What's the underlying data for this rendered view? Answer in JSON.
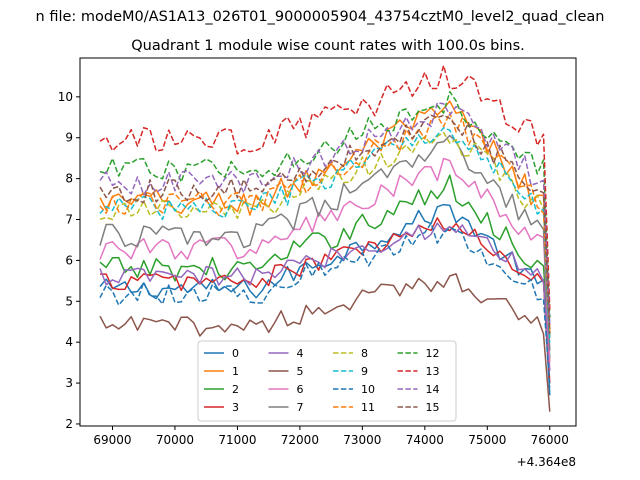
{
  "chart_data": {
    "type": "line",
    "suptitle": "n file: modeM0/AS1A13_026T01_9000005904_43754cztM0_level2_quad_clean",
    "title": "Quadrant 1 module wise count rates with 100.0s bins.",
    "xlabel": "",
    "ylabel": "",
    "x_offset_label": "+4.364e8",
    "xlim": [
      68480,
      76420
    ],
    "ylim": [
      1.95,
      10.95
    ],
    "x_ticks": [
      69000,
      70000,
      71000,
      72000,
      73000,
      74000,
      75000,
      76000
    ],
    "x_tick_labels": [
      "69000",
      "70000",
      "71000",
      "72000",
      "73000",
      "74000",
      "75000",
      "76000"
    ],
    "y_ticks": [
      2,
      3,
      4,
      5,
      6,
      7,
      8,
      9,
      10
    ],
    "y_tick_labels": [
      "2",
      "3",
      "4",
      "5",
      "6",
      "7",
      "8",
      "9",
      "10"
    ],
    "grid": false,
    "legend": {
      "position": "lower-center",
      "columns": 4
    },
    "x_start": 68800,
    "x_step": 100,
    "series": [
      {
        "name": "0",
        "color": "#1f77b4",
        "dash": "solid",
        "base": 5.3,
        "peak": 7.3,
        "amp": 0.25,
        "end": 2.7
      },
      {
        "name": "1",
        "color": "#ff7f0e",
        "dash": "solid",
        "base": 7.4,
        "peak": 9.7,
        "amp": 0.35,
        "end": 4.2
      },
      {
        "name": "2",
        "color": "#2ca02c",
        "dash": "solid",
        "base": 5.8,
        "peak": 7.8,
        "amp": 0.3,
        "end": 3.6
      },
      {
        "name": "3",
        "color": "#d62728",
        "dash": "solid",
        "base": 5.5,
        "peak": 6.9,
        "amp": 0.25,
        "end": 3.0
      },
      {
        "name": "4",
        "color": "#9467bd",
        "dash": "solid",
        "base": 5.6,
        "peak": 6.9,
        "amp": 0.25,
        "end": 3.3
      },
      {
        "name": "5",
        "color": "#8c564b",
        "dash": "solid",
        "base": 4.4,
        "peak": 5.6,
        "amp": 0.25,
        "end": 2.3
      },
      {
        "name": "6",
        "color": "#e377c2",
        "dash": "solid",
        "base": 6.3,
        "peak": 8.3,
        "amp": 0.3,
        "end": 3.5
      },
      {
        "name": "7",
        "color": "#7f7f7f",
        "dash": "solid",
        "base": 6.6,
        "peak": 8.8,
        "amp": 0.3,
        "end": 3.8
      },
      {
        "name": "8",
        "color": "#bcbd22",
        "dash": "dashed",
        "base": 7.2,
        "peak": 9.1,
        "amp": 0.3,
        "end": 4.1
      },
      {
        "name": "9",
        "color": "#17becf",
        "dash": "dashed",
        "base": 7.3,
        "peak": 9.3,
        "amp": 0.3,
        "end": 4.0
      },
      {
        "name": "10",
        "color": "#1f77b4",
        "dash": "dashed",
        "base": 5.2,
        "peak": 6.8,
        "amp": 0.3,
        "end": 2.9
      },
      {
        "name": "11",
        "color": "#ff7f0e",
        "dash": "dashed",
        "base": 7.4,
        "peak": 9.5,
        "amp": 0.3,
        "end": 4.3
      },
      {
        "name": "12",
        "color": "#2ca02c",
        "dash": "dashed",
        "base": 8.2,
        "peak": 9.9,
        "amp": 0.3,
        "end": 4.6
      },
      {
        "name": "13",
        "color": "#d62728",
        "dash": "dashed",
        "base": 8.9,
        "peak": 10.5,
        "amp": 0.35,
        "end": 4.8
      },
      {
        "name": "14",
        "color": "#9467bd",
        "dash": "dashed",
        "base": 7.9,
        "peak": 9.7,
        "amp": 0.3,
        "end": 4.4
      },
      {
        "name": "15",
        "color": "#8c564b",
        "dash": "dashed",
        "base": 7.7,
        "peak": 9.5,
        "amp": 0.3,
        "end": 4.2
      }
    ]
  }
}
